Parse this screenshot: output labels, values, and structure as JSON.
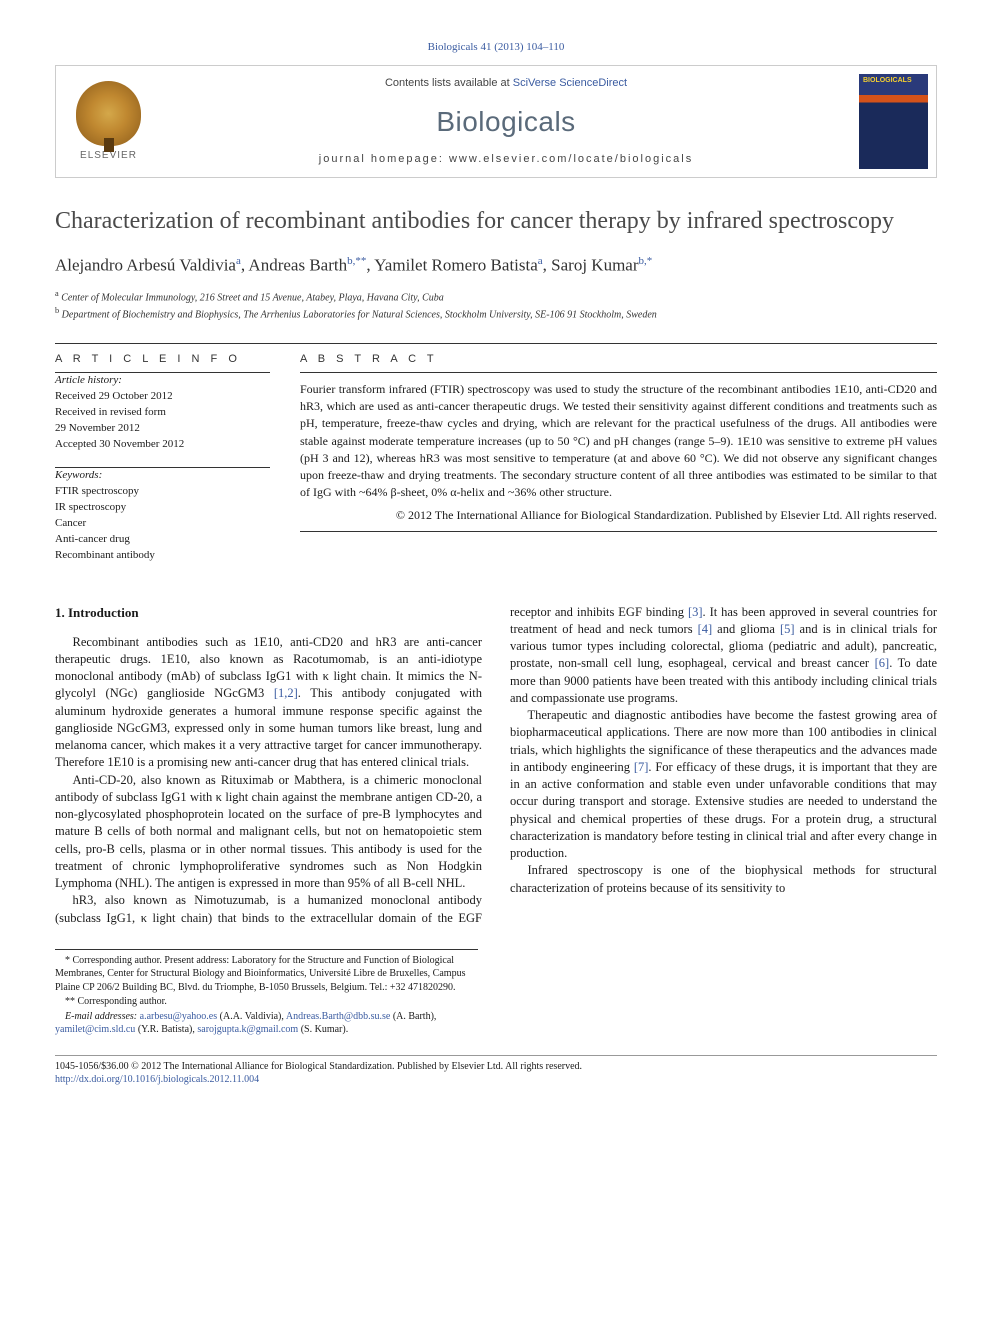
{
  "citation": "Biologicals 41 (2013) 104–110",
  "header": {
    "elsevier_label": "ELSEVIER",
    "contents_prefix": "Contents lists available at ",
    "contents_link": "SciVerse ScienceDirect",
    "journal_name": "Biologicals",
    "homepage_prefix": "journal homepage: ",
    "homepage_url": "www.elsevier.com/locate/biologicals",
    "cover_label": "BIOLOGICALS"
  },
  "article": {
    "title": "Characterization of recombinant antibodies for cancer therapy by infrared spectroscopy",
    "authors_html": "Alejandro Arbesú Valdivia<sup>a</sup>, Andreas Barth<sup>b,**</sup>, Yamilet Romero Batista<sup>a</sup>, Saroj Kumar<sup>b,*</sup>",
    "affiliations": [
      {
        "sup": "a",
        "text": "Center of Molecular Immunology, 216 Street and 15 Avenue, Atabey, Playa, Havana City, Cuba"
      },
      {
        "sup": "b",
        "text": "Department of Biochemistry and Biophysics, The Arrhenius Laboratories for Natural Sciences, Stockholm University, SE-106 91 Stockholm, Sweden"
      }
    ]
  },
  "articleinfo": {
    "heading": "A R T I C L E  I N F O",
    "history_label": "Article history:",
    "history": [
      "Received 29 October 2012",
      "Received in revised form",
      "29 November 2012",
      "Accepted 30 November 2012"
    ],
    "keywords_label": "Keywords:",
    "keywords": [
      "FTIR spectroscopy",
      "IR spectroscopy",
      "Cancer",
      "Anti-cancer drug",
      "Recombinant antibody"
    ]
  },
  "abstract": {
    "heading": "A B S T R A C T",
    "text": "Fourier transform infrared (FTIR) spectroscopy was used to study the structure of the recombinant antibodies 1E10, anti-CD20 and hR3, which are used as anti-cancer therapeutic drugs. We tested their sensitivity against different conditions and treatments such as pH, temperature, freeze-thaw cycles and drying, which are relevant for the practical usefulness of the drugs. All antibodies were stable against moderate temperature increases (up to 50 °C) and pH changes (range 5–9). 1E10 was sensitive to extreme pH values (pH 3 and 12), whereas hR3 was most sensitive to temperature (at and above 60 °C). We did not observe any significant changes upon freeze-thaw and drying treatments. The secondary structure content of all three antibodies was estimated to be similar to that of IgG with ~64% β-sheet, 0% α-helix and ~36% other structure.",
    "copyright": "© 2012 The International Alliance for Biological Standardization. Published by Elsevier Ltd. All rights reserved."
  },
  "body": {
    "heading": "1. Introduction",
    "p1": "Recombinant antibodies such as 1E10, anti-CD20 and hR3 are anti-cancer therapeutic drugs. 1E10, also known as Racotumomab, is an anti-idiotype monoclonal antibody (mAb) of subclass IgG1 with κ light chain. It mimics the N-glycolyl (NGc) ganglioside NGcGM3 [1,2]. This antibody conjugated with aluminum hydroxide generates a humoral immune response specific against the ganglioside NGcGM3, expressed only in some human tumors like breast, lung and melanoma cancer, which makes it a very attractive target for cancer immunotherapy. Therefore 1E10 is a promising new anti-cancer drug that has entered clinical trials.",
    "p2": "Anti-CD-20, also known as Rituximab or Mabthera, is a chimeric monoclonal antibody of subclass IgG1 with κ light chain against the membrane antigen CD-20, a non-glycosylated phosphoprotein located on the surface of pre-B lymphocytes and mature B cells of both normal and malignant cells, but not on hematopoietic stem cells, pro-B cells, plasma or in other normal tissues. This antibody is used for the treatment of chronic lymphoproliferative syndromes such as Non Hodgkin Lymphoma (NHL). The antigen is expressed in more than 95% of all B-cell NHL.",
    "p3": "hR3, also known as Nimotuzumab, is a humanized monoclonal antibody (subclass IgG1, κ light chain) that binds to the extracellular domain of the EGF receptor and inhibits EGF binding [3]. It has been approved in several countries for treatment of head and neck tumors [4] and glioma [5] and is in clinical trials for various tumor types including colorectal, glioma (pediatric and adult), pancreatic, prostate, non-small cell lung, esophageal, cervical and breast cancer [6]. To date more than 9000 patients have been treated with this antibody including clinical trials and compassionate use programs.",
    "p4": "Therapeutic and diagnostic antibodies have become the fastest growing area of biopharmaceutical applications. There are now more than 100 antibodies in clinical trials, which highlights the significance of these therapeutics and the advances made in antibody engineering [7]. For efficacy of these drugs, it is important that they are in an active conformation and stable even under unfavorable conditions that may occur during transport and storage. Extensive studies are needed to understand the physical and chemical properties of these drugs. For a protein drug, a structural characterization is mandatory before testing in clinical trial and after every change in production.",
    "p5": "Infrared spectroscopy is one of the biophysical methods for structural characterization of proteins because of its sensitivity to"
  },
  "footnotes": {
    "f1": "* Corresponding author. Present address: Laboratory for the Structure and Function of Biological Membranes, Center for Structural Biology and Bioinformatics, Université Libre de Bruxelles, Campus Plaine CP 206/2 Building BC, Blvd. du Triomphe, B-1050 Brussels, Belgium. Tel.: +32 471820290.",
    "f2": "** Corresponding author.",
    "emails_label": "E-mail addresses:",
    "emails": "a.arbesu@yahoo.es (A.A. Valdivia), Andreas.Barth@dbb.su.se (A. Barth), yamilet@cim.sld.cu (Y.R. Batista), sarojgupta.k@gmail.com (S. Kumar)."
  },
  "bottom": {
    "line1": "1045-1056/$36.00 © 2012 The International Alliance for Biological Standardization. Published by Elsevier Ltd. All rights reserved.",
    "doi": "http://dx.doi.org/10.1016/j.biologicals.2012.11.004"
  },
  "colors": {
    "link": "#3a5ba0",
    "title_gray": "#4a4a4a",
    "journal_gray": "#5a6a7a",
    "rule": "#333333"
  }
}
